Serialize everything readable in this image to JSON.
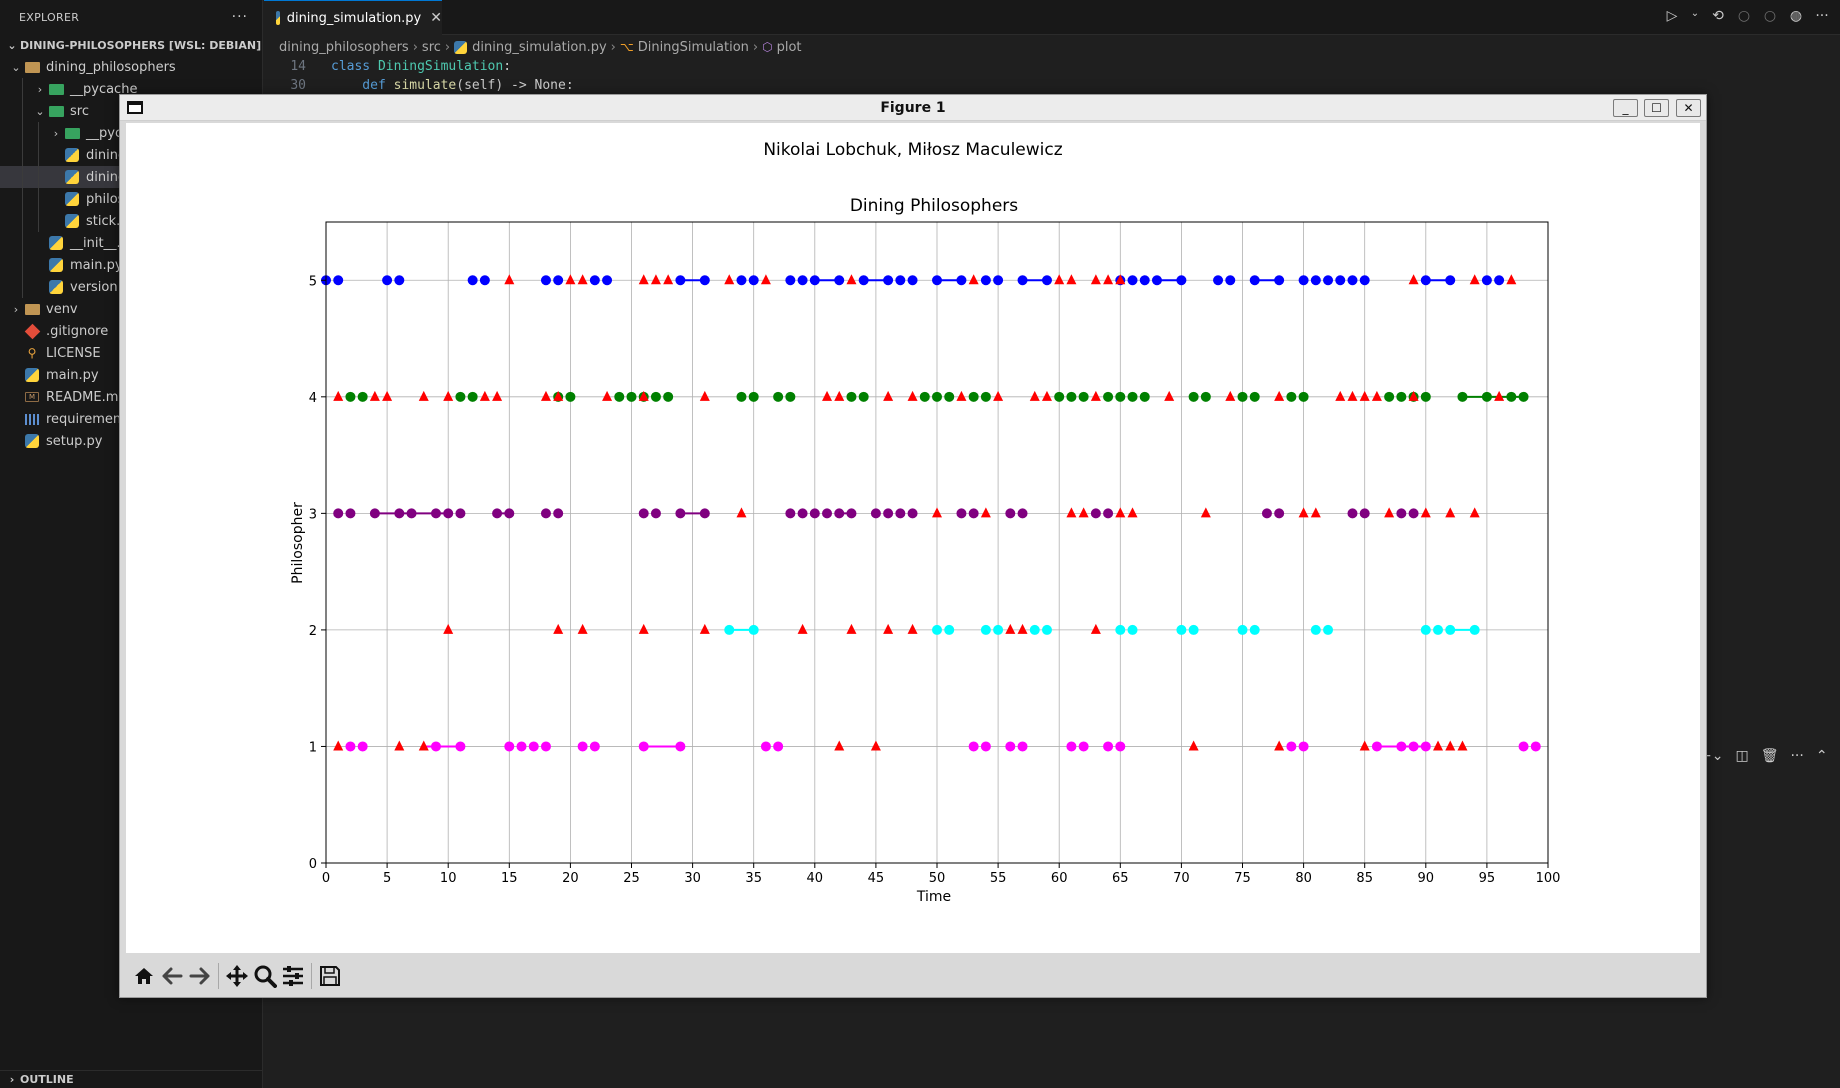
{
  "explorer": {
    "header": "EXPLORER",
    "more": "···",
    "root": "DINING-PHILOSOPHERS [WSL: DEBIAN]",
    "tree": [
      {
        "label": "dining_philosophers",
        "type": "folder",
        "depth": 1,
        "expanded": true
      },
      {
        "label": "__pycache__",
        "type": "folder-green",
        "depth": 2,
        "expanded": false
      },
      {
        "label": "src",
        "type": "folder-green",
        "depth": 2,
        "expanded": true
      },
      {
        "label": "__pycache__",
        "type": "folder-green",
        "depth": 3,
        "expanded": false
      },
      {
        "label": "dining_philosophers.py",
        "type": "py",
        "depth": 3
      },
      {
        "label": "dining_simulation.py",
        "type": "py",
        "depth": 3,
        "selected": true
      },
      {
        "label": "philosopher.py",
        "type": "py",
        "depth": 3
      },
      {
        "label": "stick.py",
        "type": "py",
        "depth": 3
      },
      {
        "label": "__init__.py",
        "type": "py",
        "depth": 2
      },
      {
        "label": "main.py",
        "type": "py",
        "depth": 2
      },
      {
        "label": "version.py",
        "type": "py",
        "depth": 2
      },
      {
        "label": "venv",
        "type": "folder",
        "depth": 1,
        "expanded": false
      },
      {
        "label": ".gitignore",
        "type": "git",
        "depth": 1
      },
      {
        "label": "LICENSE",
        "type": "license",
        "depth": 1
      },
      {
        "label": "main.py",
        "type": "py",
        "depth": 1
      },
      {
        "label": "README.md",
        "type": "md",
        "depth": 1
      },
      {
        "label": "requirements.txt",
        "type": "req",
        "depth": 1
      },
      {
        "label": "setup.py",
        "type": "py",
        "depth": 1
      }
    ],
    "outline": "OUTLINE"
  },
  "editor": {
    "tab": {
      "label": "dining_simulation.py",
      "close": "✕"
    },
    "breadcrumb": [
      "dining_philosophers",
      "src",
      "dining_simulation.py",
      "DiningSimulation",
      "plot"
    ],
    "code": [
      {
        "ln": "14",
        "kw": "class ",
        "name": "DiningSimulation",
        "rest": ":"
      },
      {
        "ln": "30",
        "kw": "    def ",
        "name": "simulate",
        "rest": "(self) -> None:"
      }
    ]
  },
  "figure_window": {
    "title": "Figure 1",
    "min": "_",
    "max": "☐",
    "close": "✕"
  },
  "chart_data": {
    "type": "scatter",
    "suptitle": "Nikolai Lobchuk, Miłosz Maculewicz",
    "title": "Dining Philosophers",
    "xlabel": "Time",
    "ylabel": "Philosopher",
    "xlim": [
      0,
      100
    ],
    "ylim": [
      0,
      5.5
    ],
    "xticks": [
      0,
      5,
      10,
      15,
      20,
      25,
      30,
      35,
      40,
      45,
      50,
      55,
      60,
      65,
      70,
      75,
      80,
      85,
      90,
      95,
      100
    ],
    "yticks": [
      0,
      1,
      2,
      3,
      4,
      5
    ],
    "grid": true,
    "hungry_color": "#ff0000",
    "philosophers": [
      {
        "id": 1,
        "color": "#ff00ff",
        "eat": [
          2,
          3,
          9,
          11,
          15,
          16,
          17,
          18,
          21,
          22,
          26,
          29,
          36,
          37,
          53,
          54,
          56,
          57,
          61,
          62,
          64,
          65,
          79,
          80,
          86,
          88,
          89,
          90,
          98,
          99
        ],
        "hungry": [
          1,
          6,
          8,
          42,
          45,
          71,
          78,
          85,
          91,
          92,
          93
        ],
        "segments": [
          [
            8,
            11
          ],
          [
            26,
            29
          ],
          [
            86,
            90
          ]
        ]
      },
      {
        "id": 2,
        "color": "#00ffff",
        "eat": [
          33,
          35,
          50,
          51,
          54,
          55,
          58,
          59,
          65,
          66,
          70,
          71,
          75,
          76,
          81,
          82,
          90,
          91,
          92,
          94
        ],
        "hungry": [
          10,
          19,
          21,
          26,
          31,
          39,
          43,
          46,
          48,
          56,
          57,
          63
        ],
        "segments": [
          [
            33,
            35
          ],
          [
            92,
            94
          ]
        ]
      },
      {
        "id": 3,
        "color": "#800080",
        "eat": [
          1,
          2,
          4,
          6,
          7,
          9,
          10,
          11,
          14,
          15,
          18,
          19,
          26,
          27,
          29,
          31,
          38,
          39,
          40,
          41,
          42,
          43,
          45,
          46,
          47,
          48,
          52,
          53,
          56,
          57,
          63,
          64,
          77,
          78,
          84,
          85,
          88,
          89
        ],
        "hungry": [
          34,
          50,
          54,
          61,
          62,
          65,
          66,
          72,
          80,
          81,
          87,
          90,
          92,
          94
        ],
        "segments": [
          [
            4,
            10
          ],
          [
            14,
            15
          ],
          [
            29,
            31
          ],
          [
            42,
            43
          ]
        ]
      },
      {
        "id": 4,
        "color": "#008000",
        "eat": [
          2,
          3,
          11,
          12,
          19,
          20,
          24,
          25,
          26,
          27,
          28,
          34,
          35,
          37,
          38,
          43,
          44,
          49,
          50,
          51,
          53,
          54,
          60,
          61,
          62,
          64,
          65,
          66,
          67,
          71,
          72,
          75,
          76,
          79,
          80,
          87,
          88,
          89,
          90,
          93,
          95,
          97,
          98
        ],
        "hungry": [
          1,
          4,
          5,
          8,
          10,
          13,
          14,
          18,
          19,
          23,
          26,
          31,
          41,
          42,
          46,
          48,
          52,
          55,
          58,
          59,
          63,
          69,
          74,
          78,
          83,
          84,
          85,
          86,
          89,
          96
        ],
        "segments": [
          [
            93,
            98
          ]
        ]
      },
      {
        "id": 5,
        "color": "#0000ff",
        "eat": [
          0,
          1,
          5,
          6,
          12,
          13,
          18,
          19,
          22,
          23,
          29,
          31,
          34,
          35,
          38,
          39,
          40,
          42,
          44,
          46,
          47,
          48,
          50,
          52,
          54,
          55,
          57,
          59,
          65,
          66,
          67,
          68,
          70,
          73,
          74,
          76,
          78,
          80,
          81,
          82,
          83,
          84,
          85,
          90,
          92,
          95,
          96
        ],
        "hungry": [
          15,
          20,
          21,
          26,
          27,
          28,
          33,
          36,
          43,
          53,
          60,
          61,
          63,
          64,
          65,
          89,
          94,
          97
        ],
        "segments": [
          [
            29,
            31
          ],
          [
            40,
            42
          ],
          [
            44,
            46
          ],
          [
            50,
            52
          ],
          [
            57,
            59
          ],
          [
            68,
            70
          ],
          [
            76,
            78
          ],
          [
            90,
            92
          ]
        ]
      }
    ]
  }
}
